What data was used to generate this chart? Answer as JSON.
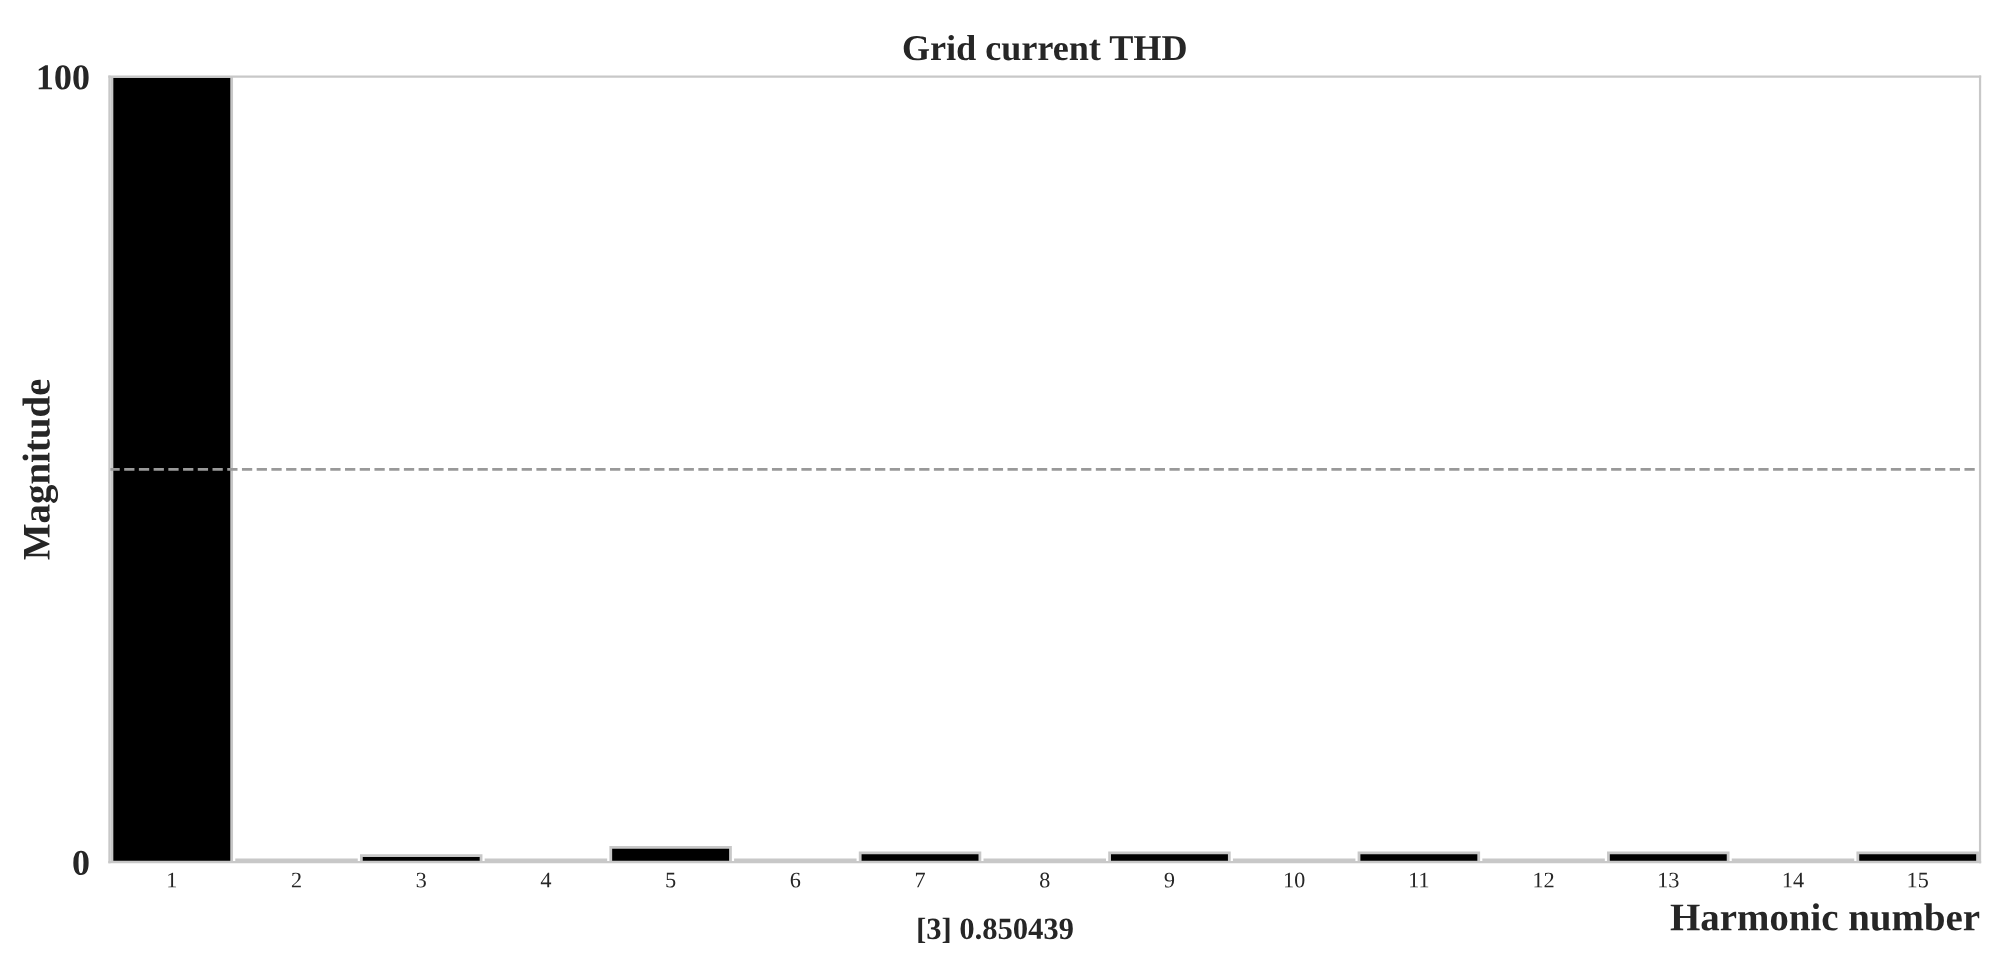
{
  "chart_data": {
    "type": "bar",
    "title": "Grid current THD",
    "xlabel": "Harmonic number",
    "ylabel": "Magnitude",
    "categories": [
      "1",
      "2",
      "3",
      "4",
      "5",
      "6",
      "7",
      "8",
      "9",
      "10",
      "11",
      "12",
      "13",
      "14",
      "15"
    ],
    "values": [
      100,
      0.3,
      0.85,
      0.3,
      1.9,
      0.3,
      1.2,
      0.3,
      1.2,
      0.3,
      1.2,
      0.3,
      1.2,
      0.3,
      1.2
    ],
    "colors": [
      "#000000",
      "#808080",
      "#000000",
      "#808080",
      "#000000",
      "#808080",
      "#000000",
      "#808080",
      "#000000",
      "#808080",
      "#000000",
      "#808080",
      "#000000",
      "#808080",
      "#000000"
    ],
    "ylim": [
      0,
      100
    ],
    "yticks": [
      0,
      100
    ],
    "ref_lines": [
      {
        "axis": "y",
        "value": 50,
        "color": "#999999",
        "line_style": "dashed"
      }
    ],
    "annotations": [
      "[3] 0.850439"
    ],
    "grid": false,
    "legend": false
  }
}
